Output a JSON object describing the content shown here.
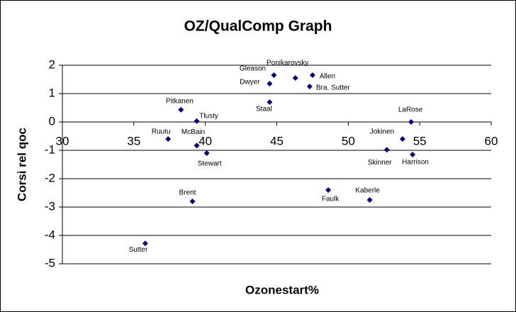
{
  "chart_data": {
    "type": "scatter",
    "title": "OZ/QualComp Graph",
    "x_label": "Ozonestart%",
    "y_label": "Corsi rel qoc",
    "labels": [
      "Sutter",
      "Brent",
      "Ruutu",
      "Pitkanen",
      "Tlusty",
      "McBain",
      "Stewart",
      "Dwyer",
      "Gleason",
      "Staal",
      "Ponikarovsky",
      "Allen",
      "Bra. Sutter",
      "Faulk",
      "Kaberle",
      "Skinner",
      "Jokinen",
      "LaRose",
      "Harrison"
    ],
    "x": [
      35.8,
      39.1,
      37.4,
      38.3,
      39.4,
      39.4,
      40.1,
      44.5,
      44.8,
      44.5,
      46.3,
      47.5,
      47.3,
      48.6,
      51.5,
      52.7,
      53.8,
      54.4,
      54.5
    ],
    "values": [
      -4.28,
      -2.8,
      -0.6,
      0.43,
      0.03,
      -0.83,
      -1.1,
      1.35,
      1.65,
      0.7,
      1.55,
      1.65,
      1.25,
      -2.4,
      -2.75,
      -0.98,
      -0.6,
      0.0,
      -1.15
    ],
    "color": "#000080",
    "xlim": [
      30,
      60
    ],
    "xticks": [
      30,
      35,
      40,
      45,
      50,
      55,
      60
    ],
    "ylim": [
      -5,
      2
    ],
    "yticks": [
      -5,
      -4,
      -3,
      -2,
      -1,
      0,
      1,
      2
    ],
    "grid": true
  }
}
